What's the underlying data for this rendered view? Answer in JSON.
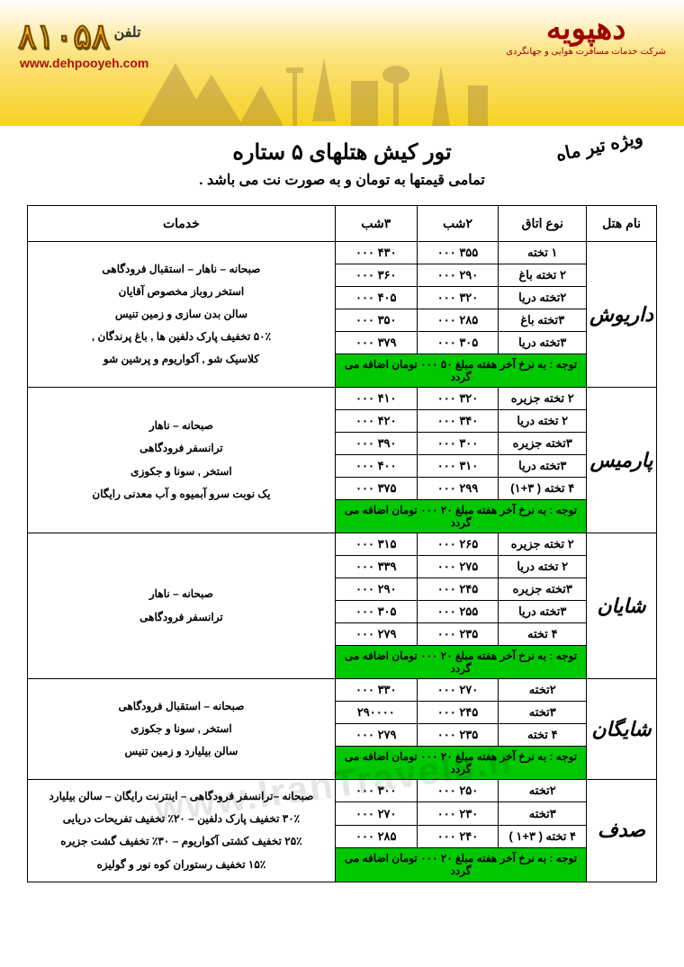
{
  "banner": {
    "brand": "دهپویه",
    "brand_subtitle": "شرکت خدمات مسافرت هوایی و جهانگردی",
    "phone_number": "۸۱۰۵۸",
    "phone_label": "تلفن",
    "url": "www.dehpooyeh.com",
    "bg_gradient_top": "#ffffff",
    "bg_gradient_bottom": "#f5d226",
    "phone_color": "#f6b800",
    "brand_color": "#a00000"
  },
  "badge": "ویژه تیر ماه",
  "title": "تور کیش هتلهای ۵ ستاره",
  "subtitle": "تمامی قیمتها به تومان و به صورت نت می باشد .",
  "watermark": "www.IranTravels.ir",
  "columns": {
    "hotel": "نام هتل",
    "room": "نوع اتاق",
    "n2": "۲شب",
    "n3": "۳شب",
    "services": "خدمات"
  },
  "note_color": "#00c800",
  "hotels": [
    {
      "name": "داریوش",
      "rows": [
        {
          "room": "۱ تخته",
          "n2": "۳۵۵ ۰۰۰",
          "n3": "۴۳۰ ۰۰۰"
        },
        {
          "room": "۲ تخته باغ",
          "n2": "۲۹۰ ۰۰۰",
          "n3": "۳۶۰ ۰۰۰"
        },
        {
          "room": "۲تخته دریا",
          "n2": "۳۲۰ ۰۰۰",
          "n3": "۴۰۵ ۰۰۰"
        },
        {
          "room": "۳تخته باغ",
          "n2": "۲۸۵ ۰۰۰",
          "n3": "۳۵۰ ۰۰۰"
        },
        {
          "room": "۳تخته  دریا",
          "n2": "۳۰۵ ۰۰۰",
          "n3": "۳۷۹ ۰۰۰"
        }
      ],
      "services": "صبحانه – ناهار  –  استقبال فرودگاهی\nاستخر روباز مخصوص آقایان\nسالن بدن سازی و زمین تنیس\n۵۰٪ تخفیف پارک دلفین ها , باغ پرندگان ,\nکلاسیک شو , آکواریوم و پرشین شو",
      "note": "توجه : به نرخ آخر هفته مبلغ ۵۰ ۰۰۰ تومان اضافه می گردد"
    },
    {
      "name": "پارمیس",
      "rows": [
        {
          "room": "۲ تخته جزیره",
          "n2": "۳۲۰ ۰۰۰",
          "n3": "۴۱۰ ۰۰۰"
        },
        {
          "room": "۲ تخته دریا",
          "n2": "۳۴۰ ۰۰۰",
          "n3": "۴۲۰ ۰۰۰"
        },
        {
          "room": "۳تخته جزیره",
          "n2": "۳۰۰ ۰۰۰",
          "n3": "۳۹۰ ۰۰۰"
        },
        {
          "room": "۳تخته دریا",
          "n2": "۳۱۰ ۰۰۰",
          "n3": "۴۰۰ ۰۰۰"
        },
        {
          "room": "۴ تخته ( ۳+۱)",
          "n2": "۲۹۹ ۰۰۰",
          "n3": "۳۷۵ ۰۰۰"
        }
      ],
      "services": "صبحانه – ناهار\nترانسفر فرودگاهی\nاستخر , سونا و جکوزی\nیک نوبت سرو آبمیوه و آب معدنی رایگان",
      "note": "توجه : به نرخ آخر هفته مبلغ ۲۰ ۰۰۰ تومان اضافه می گردد"
    },
    {
      "name": "شایان",
      "rows": [
        {
          "room": "۲ تخته جزیره",
          "n2": "۲۶۵ ۰۰۰",
          "n3": "۳۱۵ ۰۰۰"
        },
        {
          "room": "۲ تخته دریا",
          "n2": "۲۷۵ ۰۰۰",
          "n3": "۳۳۹ ۰۰۰"
        },
        {
          "room": "۳تخته جزیره",
          "n2": "۲۴۵ ۰۰۰",
          "n3": "۲۹۰ ۰۰۰"
        },
        {
          "room": "۳تخته دریا",
          "n2": "۲۵۵ ۰۰۰",
          "n3": "۳۰۵ ۰۰۰"
        },
        {
          "room": "۴ تخته",
          "n2": "۲۳۵ ۰۰۰",
          "n3": "۲۷۹ ۰۰۰"
        }
      ],
      "services": "صبحانه – ناهار\nترانسفر فرودگاهی",
      "note": "توجه : به نرخ آخر هفته مبلغ ۲۰ ۰۰۰ تومان اضافه می گردد"
    },
    {
      "name": "شایگان",
      "rows": [
        {
          "room": "۲تخته",
          "n2": "۲۷۰ ۰۰۰",
          "n3": "۳۳۰ ۰۰۰"
        },
        {
          "room": "۳تخته",
          "n2": "۲۴۵ ۰۰۰",
          "n3": "۲۹۰۰۰۰"
        },
        {
          "room": "۴ تخته",
          "n2": "۲۳۵ ۰۰۰",
          "n3": "۲۷۹ ۰۰۰"
        }
      ],
      "services": "صبحانه – استقبال فرودگاهی\nاستخر , سونا و جکوزی\nسالن بیلیارد  و زمین تنیس",
      "note": "توجه : به نرخ آخر هفته مبلغ ۲۰ ۰۰۰ تومان اضافه می گردد"
    },
    {
      "name": "صدف",
      "rows": [
        {
          "room": "۲تخته",
          "n2": "۲۵۰ ۰۰۰",
          "n3": "۳۰۰ ۰۰۰"
        },
        {
          "room": "۳تخته",
          "n2": "۲۳۰ ۰۰۰",
          "n3": "۲۷۰ ۰۰۰"
        },
        {
          "room": "۴ تخته ( ۳+۱ )",
          "n2": "۲۴۰ ۰۰۰",
          "n3": "۲۸۵ ۰۰۰"
        }
      ],
      "services": "صبحانه –ترانسفر فرودگاهی – اینترنت رایگان – سالن بیلیارد\n۳۰٪ تخفیف پارک دلفین – ۲۰٪ تخفیف تفریحات دریایی\n۲۵٪ تخفیف کشتی آکواریوم – ۳۰٪ تخفیف گشت جزیره\n۱۵٪ تخفیف رستوران کوه نور و گولیزه",
      "note": "توجه : به نرخ آخر هفته مبلغ ۲۰ ۰۰۰ تومان اضافه می گردد"
    }
  ]
}
